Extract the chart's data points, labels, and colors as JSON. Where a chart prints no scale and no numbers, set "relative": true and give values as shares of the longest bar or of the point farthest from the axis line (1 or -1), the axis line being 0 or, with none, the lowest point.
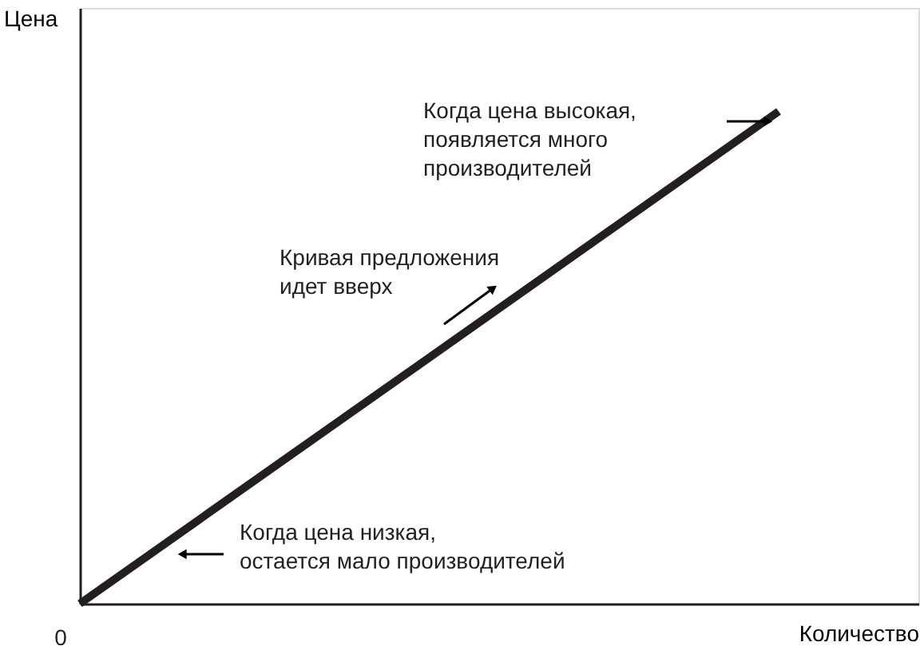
{
  "chart_data": {
    "type": "line",
    "relative": true,
    "categories": [
      null,
      null
    ],
    "series": [
      {
        "color": "#231f20",
        "values": [
          0,
          1
        ]
      }
    ],
    "xlabel": "Количество",
    "ylabel": "Цена",
    "annotations": [
      "Когда цена высокая,\nпоявляется много\nпроизводителей",
      "Кривая предложения\nидет вверх",
      "Когда цена низкая,\nостается мало производителей",
      "0"
    ],
    "grid": false
  }
}
